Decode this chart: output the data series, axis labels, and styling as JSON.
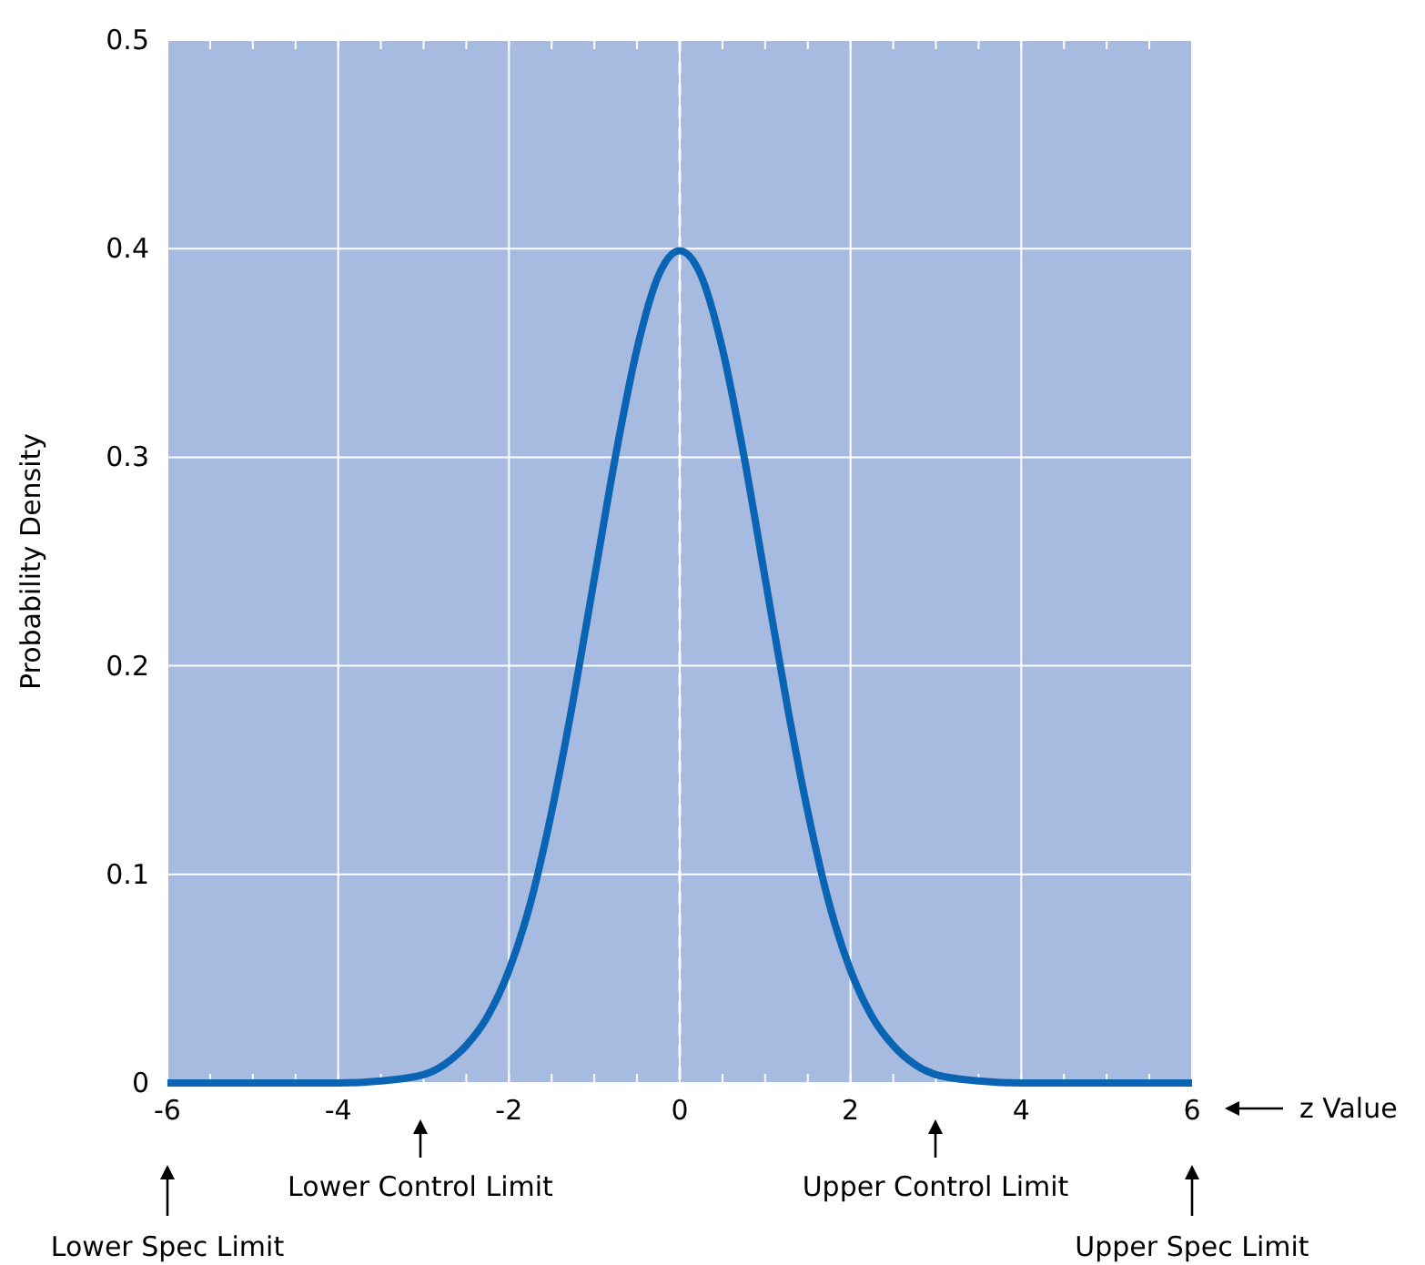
{
  "chart_data": {
    "type": "line",
    "xlabel": "z Value",
    "ylabel": "Probability Density",
    "x": [
      -6,
      -5,
      -4,
      -3.5,
      -3,
      -2.75,
      -2.5,
      -2.25,
      -2,
      -1.75,
      -1.5,
      -1.25,
      -1,
      -0.75,
      -0.5,
      -0.25,
      0,
      0.25,
      0.5,
      0.75,
      1,
      1.25,
      1.5,
      1.75,
      2,
      2.25,
      2.5,
      2.75,
      3,
      3.5,
      4,
      5,
      6
    ],
    "series": [
      {
        "color": "#0a64b4",
        "values": [
          0,
          0,
          0,
          0.001,
          0.004,
          0.009,
          0.018,
          0.032,
          0.054,
          0.086,
          0.13,
          0.183,
          0.242,
          0.301,
          0.352,
          0.387,
          0.399,
          0.387,
          0.352,
          0.301,
          0.242,
          0.183,
          0.13,
          0.086,
          0.054,
          0.032,
          0.018,
          0.009,
          0.004,
          0.001,
          0,
          0,
          0
        ]
      }
    ],
    "xlim": [
      -6,
      6
    ],
    "ylim": [
      0,
      0.5
    ],
    "xticks": [
      -6,
      {
        "value": -5.5,
        "label": null
      },
      {
        "value": -5,
        "label": null
      },
      {
        "value": -4.5,
        "label": null
      },
      -4,
      {
        "value": -3.5,
        "label": null
      },
      {
        "value": -3,
        "label": null
      },
      {
        "value": -2.5,
        "label": null
      },
      -2,
      {
        "value": -1.5,
        "label": null
      },
      {
        "value": -1,
        "label": null
      },
      {
        "value": -0.5,
        "label": null
      },
      0,
      {
        "value": 0.5,
        "label": null
      },
      {
        "value": 1,
        "label": null
      },
      {
        "value": 1.5,
        "label": null
      },
      2,
      {
        "value": 2.5,
        "label": null
      },
      {
        "value": 3,
        "label": null
      },
      {
        "value": 3.5,
        "label": null
      },
      4,
      {
        "value": 4.5,
        "label": null
      },
      {
        "value": 5,
        "label": null
      },
      {
        "value": 5.5,
        "label": null
      },
      6
    ],
    "yticks": [
      0,
      0.1,
      0.2,
      0.3,
      0.4,
      0.5
    ],
    "grid": true,
    "marker": "none",
    "line_style": "solid",
    "ref_lines": [
      {
        "axis": "x",
        "value": 0,
        "color": "#ffffff",
        "line_style": "dashed"
      }
    ],
    "annotations": [
      "Lower Control Limit",
      "Upper Control Limit",
      "Lower Spec Limit",
      "Upper Spec Limit"
    ]
  }
}
